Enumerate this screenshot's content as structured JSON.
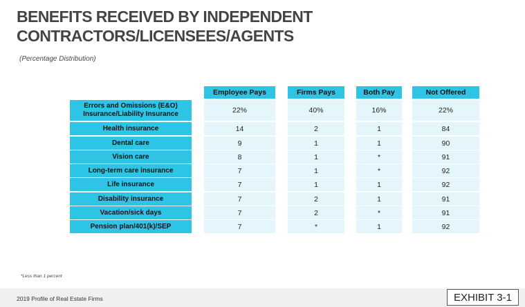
{
  "title_line1": "BENEFITS RECEIVED BY INDEPENDENT",
  "title_line2": "CONTRACTORS/LICENSEES/AGENTS",
  "subtitle": "(Percentage Distribution)",
  "columns": [
    "Employee Pays",
    "Firms Pays",
    "Both Pay",
    "Not Offered"
  ],
  "rows": [
    {
      "label_line1": "Errors and Omissions (E&O)",
      "label_line2": "Insurance/Liability Insurance",
      "values": [
        "22%",
        "40%",
        "16%",
        "22%"
      ]
    },
    {
      "label_line1": "Health insurance",
      "label_line2": "",
      "values": [
        "14",
        "2",
        "1",
        "84"
      ]
    },
    {
      "label_line1": "Dental care",
      "label_line2": "",
      "values": [
        "9",
        "1",
        "1",
        "90"
      ]
    },
    {
      "label_line1": "Vision care",
      "label_line2": "",
      "values": [
        "8",
        "1",
        "*",
        "91"
      ]
    },
    {
      "label_line1": "Long-term care insurance",
      "label_line2": "",
      "values": [
        "7",
        "1",
        "*",
        "92"
      ]
    },
    {
      "label_line1": "Life insurance",
      "label_line2": "",
      "values": [
        "7",
        "1",
        "1",
        "92"
      ]
    },
    {
      "label_line1": "Disability insurance",
      "label_line2": "",
      "values": [
        "7",
        "2",
        "1",
        "91"
      ]
    },
    {
      "label_line1": "Vacation/sick days",
      "label_line2": "",
      "values": [
        "7",
        "2",
        "*",
        "91"
      ]
    },
    {
      "label_line1": "Pension plan/401(k)/SEP",
      "label_line2": "",
      "values": [
        "7",
        "*",
        "1",
        "92"
      ]
    }
  ],
  "footnote": "*Less than 1 percent",
  "source": "2019 Profile of Real Estate Firms",
  "exhibit": "EXHIBIT 3-1",
  "colors": {
    "header_bg": "#2ec4e6",
    "cell_bg": "#e4f6fb",
    "footer_bg": "#f0f0f0"
  }
}
